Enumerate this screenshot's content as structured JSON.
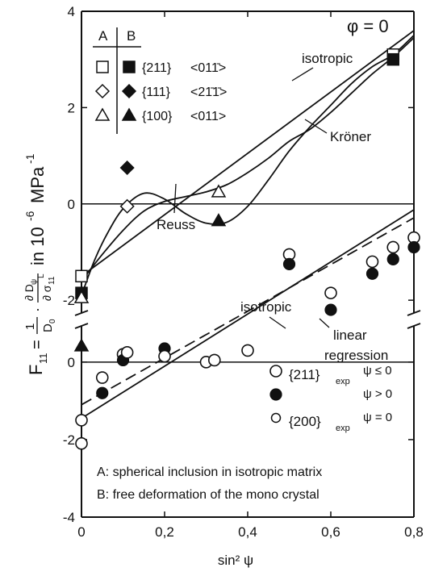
{
  "chart_data": {
    "type": "scatter",
    "condition_label": "φ = 0",
    "xlabel": "sin² ψ",
    "ylabel": {
      "prefix": "F",
      "prefix_sub": "11",
      "equals": "=",
      "frac1_num": "1",
      "frac1_den": "D",
      "frac1_den_sub": "0",
      "dot": "·",
      "frac2_num": "∂ D",
      "frac2_num_sub": "ψ",
      "frac2_den": "∂ σ",
      "frac2_den_sub": "11",
      "frac2_den_sup": "L",
      "units": "in 10",
      "units_exp": "-6",
      "units_unit": "MPa",
      "units_unit_exp": "-1"
    },
    "x_ticks": [
      {
        "value": 0,
        "label": "0"
      },
      {
        "value": 0.2,
        "label": "0,2"
      },
      {
        "value": 0.4,
        "label": "0,4"
      },
      {
        "value": 0.6,
        "label": "0,6"
      },
      {
        "value": 0.8,
        "label": "0,8"
      }
    ],
    "xlim": [
      0,
      0.8
    ],
    "upper_panel": {
      "ylim": [
        -2.4,
        4
      ],
      "y_ticks": [
        {
          "value": 4,
          "label": "4"
        },
        {
          "value": 2,
          "label": "2"
        },
        {
          "value": 0,
          "label": "0"
        },
        {
          "value": -2,
          "label": "-2"
        }
      ],
      "legend": {
        "header_a": "A",
        "header_b": "B",
        "entries": [
          {
            "orientation": "{211}",
            "direction": "<01̅ 1̄>",
            "text": "{211}  <011>",
            "marker_a": "open-square",
            "marker_b": "filled-square"
          },
          {
            "orientation": "{111}",
            "direction": "<211>",
            "text": "{111}  <2̅1̅1>",
            "marker_a": "open-diamond",
            "marker_b": "filled-diamond"
          },
          {
            "orientation": "{100}",
            "direction": "<011>",
            "text": "{100}  <011>",
            "marker_a": "open-triangle",
            "marker_b": "filled-triangle"
          }
        ]
      },
      "legend_rows": [
        {
          "orientation": "{211}",
          "direction": "<011̄>"
        },
        {
          "orientation": "{111}",
          "direction": "<21̄1̄>"
        },
        {
          "orientation": "{100}",
          "direction": "<011>"
        }
      ],
      "curves": [
        {
          "name": "isotropic",
          "x": [
            0,
            0.8
          ],
          "y": [
            -1.5,
            3.6
          ]
        },
        {
          "name": "Reuss",
          "x": [
            0,
            0.03,
            0.06,
            0.1,
            0.15,
            0.2,
            0.25,
            0.3,
            0.35,
            0.4,
            0.45,
            0.5,
            0.55,
            0.6,
            0.65,
            0.7,
            0.75,
            0.8
          ],
          "y": [
            -1.9,
            -1.2,
            -0.65,
            -0.1,
            0.22,
            0.1,
            -0.2,
            -0.4,
            -0.38,
            -0.05,
            0.5,
            1.1,
            1.6,
            2.05,
            2.5,
            2.85,
            3.1,
            3.5
          ]
        },
        {
          "name": "Kröner",
          "x": [
            0,
            0.05,
            0.1,
            0.15,
            0.2,
            0.25,
            0.3,
            0.35,
            0.4,
            0.45,
            0.5,
            0.55,
            0.6,
            0.65,
            0.7,
            0.75,
            0.8
          ],
          "y": [
            -1.6,
            -1.05,
            -0.55,
            -0.15,
            0.05,
            0.15,
            0.25,
            0.4,
            0.65,
            0.95,
            1.3,
            1.55,
            1.9,
            2.3,
            2.7,
            3.05,
            3.45
          ]
        }
      ],
      "curve_labels": [
        {
          "text": "isotropic",
          "curve": "isotropic"
        },
        {
          "text": "Kröner",
          "curve": "Kröner"
        },
        {
          "text": "Reuss",
          "curve": "Reuss"
        }
      ],
      "points": [
        {
          "marker": "open-square",
          "x": 0,
          "y": -1.5
        },
        {
          "marker": "filled-square",
          "x": 0,
          "y": -1.85
        },
        {
          "marker": "open-square",
          "x": 0.75,
          "y": 3.1
        },
        {
          "marker": "filled-square",
          "x": 0.75,
          "y": 3.0
        },
        {
          "marker": "open-diamond",
          "x": 0.11,
          "y": -0.05
        },
        {
          "marker": "filled-diamond",
          "x": 0.11,
          "y": 0.75
        },
        {
          "marker": "open-triangle",
          "x": 0,
          "y": -1.95
        },
        {
          "marker": "open-triangle",
          "x": 0.33,
          "y": 0.25
        },
        {
          "marker": "filled-triangle",
          "x": 0,
          "y": -2.95
        },
        {
          "marker": "filled-triangle",
          "x": 0.33,
          "y": -0.35
        }
      ]
    },
    "lower_panel": {
      "ylim": [
        -4,
        1.1
      ],
      "y_ticks": [
        {
          "value": 0,
          "label": "0"
        },
        {
          "value": -2,
          "label": "-2"
        },
        {
          "value": -4,
          "label": "-4"
        }
      ],
      "curves": [
        {
          "name": "isotropic",
          "x": [
            0,
            0.8
          ],
          "y": [
            -1.45,
            3.6
          ],
          "style": "solid"
        },
        {
          "name": "linear regression",
          "x": [
            0,
            0.8
          ],
          "y": [
            -1.1,
            3.3
          ],
          "style": "dashed"
        }
      ],
      "curve_labels": [
        {
          "text": "isotropic",
          "curve": "isotropic"
        },
        {
          "text": "linear regression",
          "line1": "linear",
          "line2": "regression",
          "curve": "linear regression"
        }
      ],
      "legend": {
        "entries": [
          {
            "marker": "open-circle-large",
            "label": "{211}",
            "sub": "exp",
            "condition": "ψ ≤ 0"
          },
          {
            "marker": "filled-circle",
            "label": "",
            "sub": "",
            "condition": "ψ > 0"
          },
          {
            "marker": "open-circle-small",
            "label": "{200}",
            "sub": "exp",
            "condition": "ψ = 0"
          }
        ]
      },
      "points": [
        {
          "marker": "open-circle-large",
          "x": 0,
          "y": -1.5
        },
        {
          "marker": "open-circle-large",
          "x": 0,
          "y": -2.1
        },
        {
          "marker": "open-circle-large",
          "x": 0.05,
          "y": -0.4
        },
        {
          "marker": "filled-circle",
          "x": 0.05,
          "y": -0.8
        },
        {
          "marker": "open-circle-large",
          "x": 0.1,
          "y": 0.2
        },
        {
          "marker": "filled-circle",
          "x": 0.1,
          "y": 0.05
        },
        {
          "marker": "open-circle-large",
          "x": 0.11,
          "y": 0.25
        },
        {
          "marker": "filled-circle",
          "x": 0.2,
          "y": 0.35
        },
        {
          "marker": "open-circle-large",
          "x": 0.2,
          "y": 0.15
        },
        {
          "marker": "open-circle-large",
          "x": 0.3,
          "y": 0.0
        },
        {
          "marker": "open-circle-large",
          "x": 0.32,
          "y": 0.05
        },
        {
          "marker": "open-circle-large",
          "x": 0.4,
          "y": 0.3
        },
        {
          "marker": "open-circle-large",
          "x": 0.5,
          "y": -1.05
        },
        {
          "marker": "filled-circle",
          "x": 0.5,
          "y": -1.25
        },
        {
          "marker": "open-circle-large",
          "x": 0.6,
          "y": -1.85
        },
        {
          "marker": "filled-circle",
          "x": 0.6,
          "y": -2.2
        },
        {
          "marker": "open-circle-large",
          "x": 0.7,
          "y": -1.2
        },
        {
          "marker": "filled-circle",
          "x": 0.7,
          "y": -1.45
        },
        {
          "marker": "open-circle-large",
          "x": 0.75,
          "y": -0.9
        },
        {
          "marker": "filled-circle",
          "x": 0.75,
          "y": -1.15
        },
        {
          "marker": "open-circle-large",
          "x": 0.8,
          "y": -0.7
        },
        {
          "marker": "filled-circle",
          "x": 0.8,
          "y": -0.9
        }
      ]
    },
    "footnotes": [
      "A: spherical inclusion in isotropic matrix",
      "B: free deformation of the mono crystal"
    ]
  }
}
